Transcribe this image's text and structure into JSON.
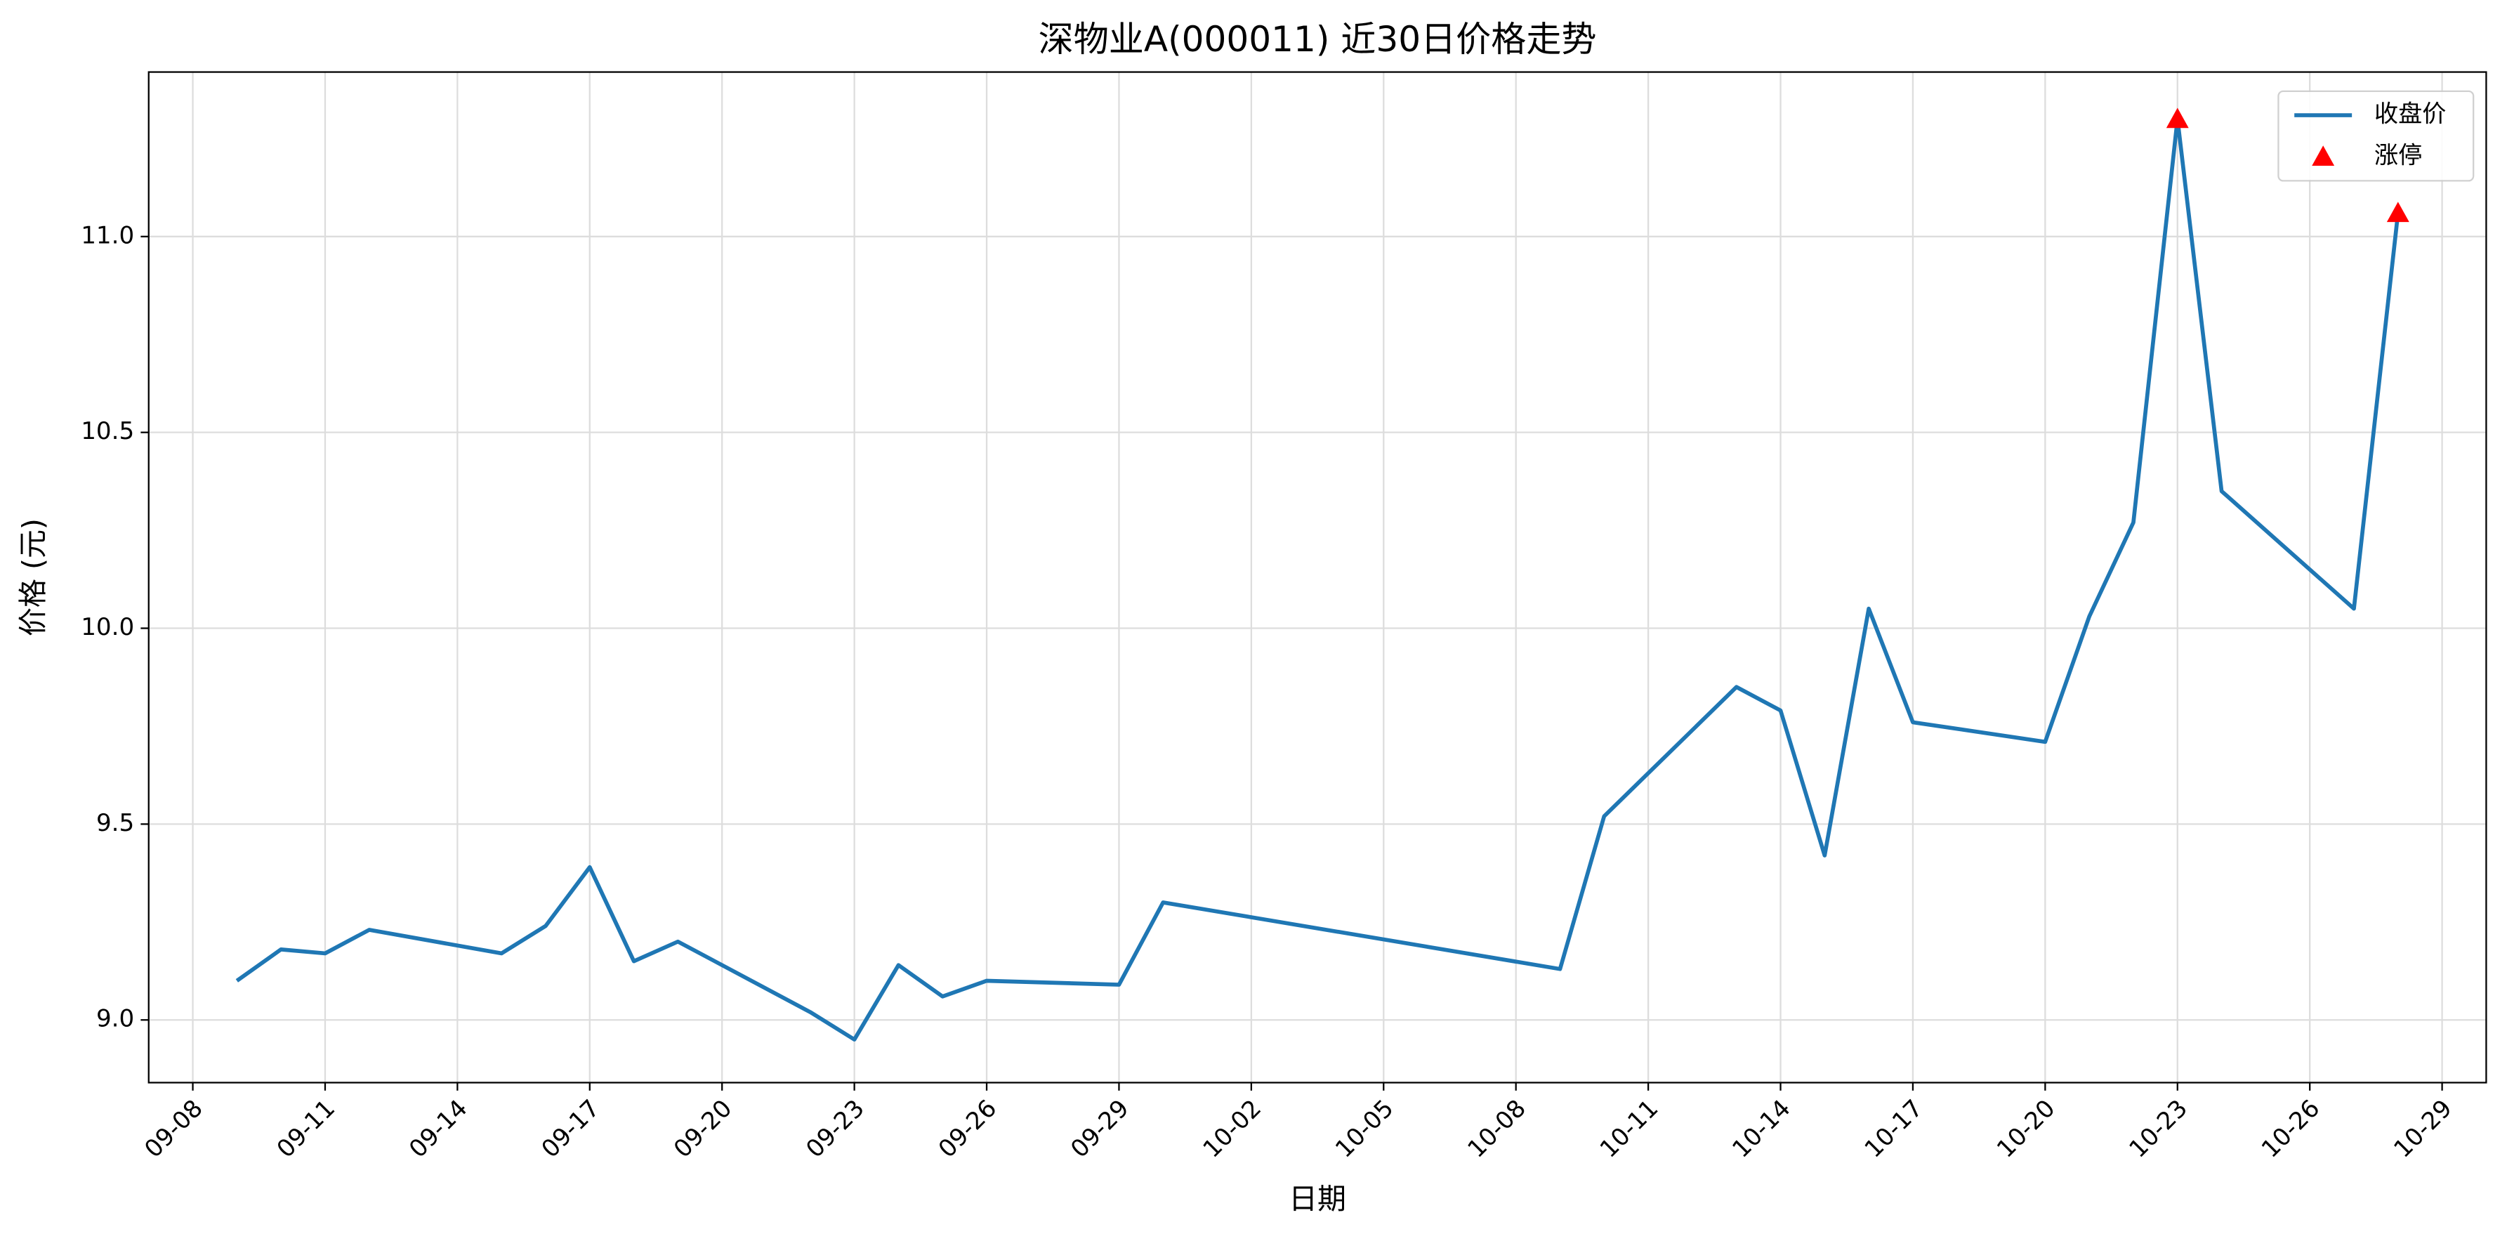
{
  "chart_data": {
    "type": "line",
    "title": "深物业A(000011) 近30日价格走势",
    "x_label": "日期",
    "y_label": "价格 (元)",
    "series": [
      {
        "name": "收盘价",
        "type": "line",
        "color": "#1f77b4",
        "x": [
          "09-09",
          "09-10",
          "09-11",
          "09-12",
          "09-15",
          "09-16",
          "09-17",
          "09-18",
          "09-19",
          "09-22",
          "09-23",
          "09-24",
          "09-25",
          "09-26",
          "09-29",
          "09-30",
          "10-09",
          "10-10",
          "10-13",
          "10-14",
          "10-15",
          "10-16",
          "10-17",
          "10-20",
          "10-21",
          "10-22",
          "10-23",
          "10-24",
          "10-27",
          "10-28"
        ],
        "values": [
          9.1,
          9.18,
          9.17,
          9.23,
          9.17,
          9.24,
          9.39,
          9.15,
          9.2,
          9.02,
          8.95,
          9.14,
          9.06,
          9.1,
          9.09,
          9.3,
          9.13,
          9.52,
          9.85,
          9.79,
          9.42,
          10.05,
          9.76,
          9.71,
          10.03,
          10.27,
          11.3,
          10.35,
          10.05,
          11.06
        ]
      },
      {
        "name": "涨停",
        "type": "scatter",
        "color": "#ff0000",
        "x": [
          "10-23",
          "10-28"
        ],
        "values": [
          11.3,
          11.06
        ]
      }
    ],
    "xlim": [
      "09-07",
      "10-30"
    ],
    "xticks": [
      "09-08",
      "09-11",
      "09-14",
      "09-17",
      "09-20",
      "09-23",
      "09-26",
      "09-29",
      "10-02",
      "10-05",
      "10-08",
      "10-11",
      "10-14",
      "10-17",
      "10-20",
      "10-23",
      "10-26",
      "10-29"
    ],
    "ylim": [
      8.84,
      11.42
    ],
    "yticks": [
      {
        "value": 9.0,
        "label": "9.0"
      },
      {
        "value": 9.5,
        "label": "9.5"
      },
      {
        "value": 10.0,
        "label": "10.0"
      },
      {
        "value": 10.5,
        "label": "10.5"
      },
      {
        "value": 11.0,
        "label": "11.0"
      }
    ],
    "grid": true,
    "legend": "upper right"
  }
}
